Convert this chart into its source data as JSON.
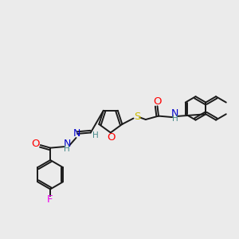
{
  "bg_color": "#ebebeb",
  "bond_color": "#1a1a1a",
  "bond_width": 1.4,
  "atom_colors": {
    "O": "#ff0000",
    "N": "#0000cc",
    "S": "#ccbb00",
    "F": "#ee00ee",
    "H": "#448888",
    "C": "#1a1a1a"
  },
  "font_size": 8.5
}
